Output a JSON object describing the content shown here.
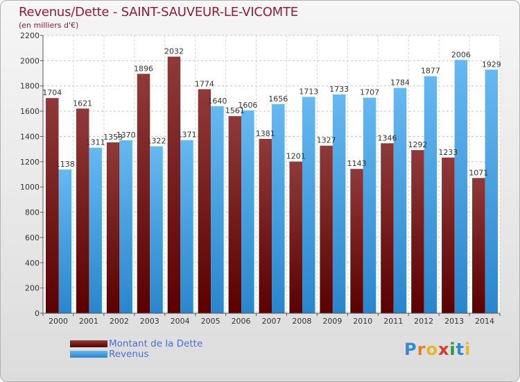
{
  "header": {
    "title": "Revenus/Dette - SAINT-SAUVEUR-LE-VICOMTE",
    "subtitle": "(en milliers d'€)"
  },
  "colors": {
    "dette_light": "#8f3a3a",
    "dette_dark": "#5a0000",
    "revenus_light": "#66b8f0",
    "revenus_dark": "#2a86cc"
  },
  "legend": {
    "dette_label": "Montant de la Dette",
    "revenus_label": "Revenus"
  },
  "logo": {
    "letters": [
      "P",
      "r",
      "o",
      "x",
      "i",
      "t",
      "i"
    ],
    "colors": [
      "#2f8bd6",
      "#e0802a",
      "#e7b82a",
      "#d93a2a",
      "#2a9a3a",
      "#2f8bd6",
      "#e7b82a"
    ]
  },
  "chart_data": {
    "type": "bar",
    "title": "Revenus/Dette - SAINT-SAUVEUR-LE-VICOMTE",
    "subtitle": "(en milliers d'€)",
    "categories": [
      "2000",
      "2001",
      "2002",
      "2003",
      "2004",
      "2005",
      "2006",
      "2007",
      "2008",
      "2009",
      "2010",
      "2011",
      "2012",
      "2013",
      "2014"
    ],
    "series": [
      {
        "name": "Montant de la Dette",
        "values": [
          1704,
          1621,
          1353,
          1896,
          2032,
          1774,
          1561,
          1381,
          1201,
          1327,
          1143,
          1346,
          1292,
          1233,
          1071
        ],
        "labels": [
          "1704",
          "1621",
          "1353",
          "1896",
          "2032",
          "1774",
          "1561",
          "1381",
          "1201",
          "1327",
          "1143",
          "1346",
          "1292",
          "1233",
          "1071"
        ]
      },
      {
        "name": "Revenus",
        "values": [
          1138,
          1311,
          1370,
          1322,
          1371,
          1640,
          1606,
          1656,
          1713,
          1733,
          1707,
          1784,
          1877,
          2006,
          1929
        ],
        "labels": [
          "1138",
          "1311",
          "1370",
          "1322",
          "1371",
          "1640",
          "1606",
          "1656",
          "1713",
          "1733",
          "1707",
          "1784",
          "1877",
          "2006",
          "1929"
        ]
      }
    ],
    "ylim": [
      0,
      2200
    ],
    "yticks": [
      "0",
      "200",
      "400",
      "600",
      "800",
      "1000",
      "1200",
      "1400",
      "1600",
      "1800",
      "2000",
      "2200"
    ],
    "grid": true,
    "legend_position": "bottom-left"
  }
}
